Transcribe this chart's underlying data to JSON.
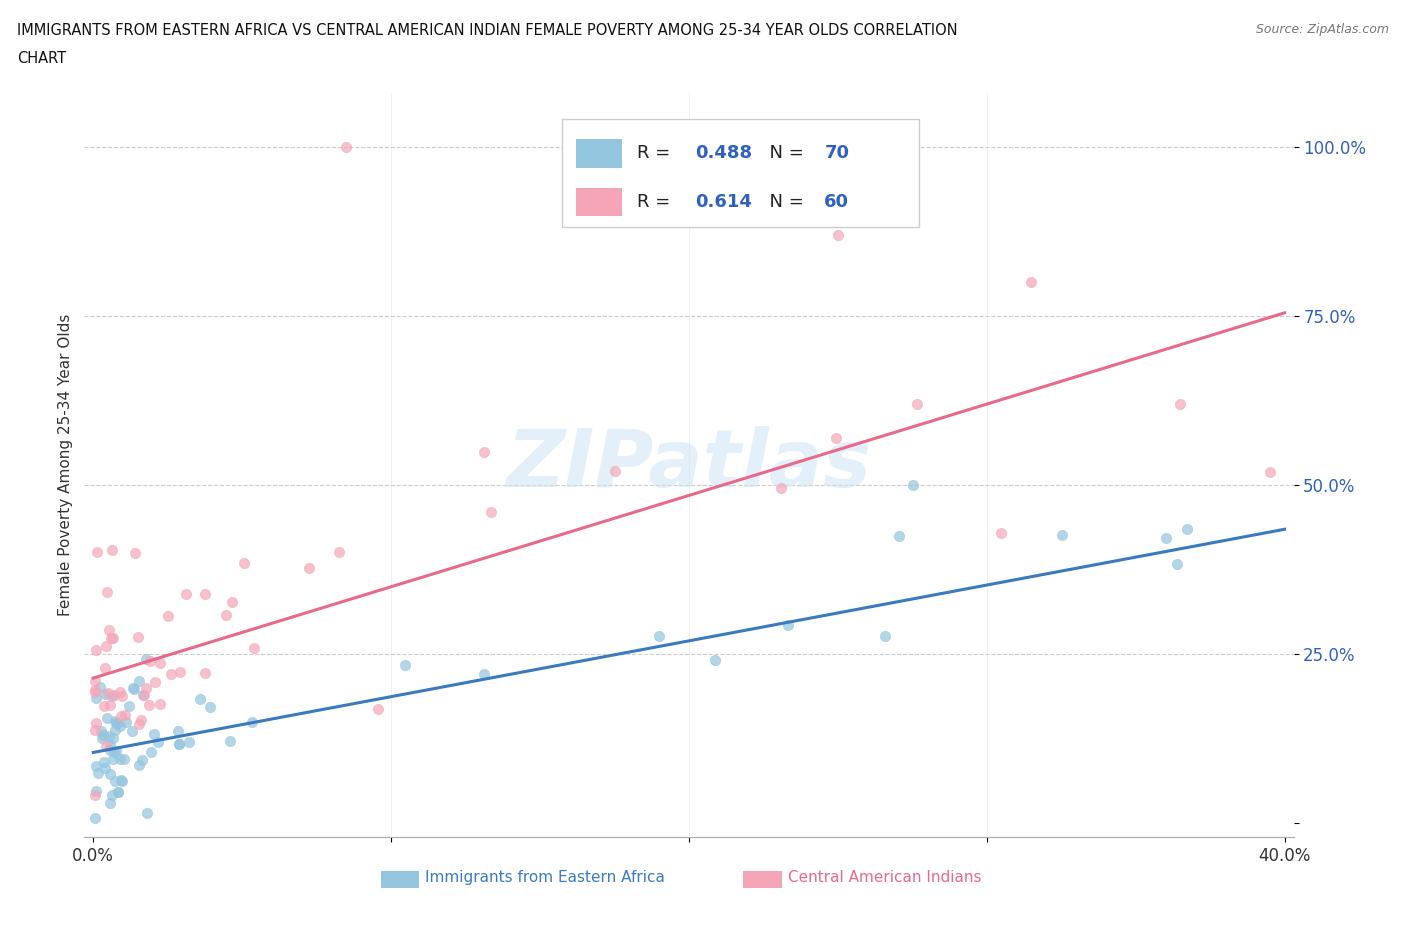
{
  "title_line1": "IMMIGRANTS FROM EASTERN AFRICA VS CENTRAL AMERICAN INDIAN FEMALE POVERTY AMONG 25-34 YEAR OLDS CORRELATION",
  "title_line2": "CHART",
  "source": "Source: ZipAtlas.com",
  "xlabel_blue": "Immigrants from Eastern Africa",
  "xlabel_pink": "Central American Indians",
  "ylabel": "Female Poverty Among 25-34 Year Olds",
  "xlim": [
    -0.003,
    0.403
  ],
  "ylim": [
    -0.02,
    1.08
  ],
  "ytick_vals": [
    0.0,
    0.25,
    0.5,
    0.75,
    1.0
  ],
  "ytick_labels": [
    "",
    "25.0%",
    "50.0%",
    "75.0%",
    "100.0%"
  ],
  "xtick_vals": [
    0.0,
    0.1,
    0.2,
    0.3,
    0.4
  ],
  "xtick_labels": [
    "0.0%",
    "",
    "",
    "",
    "40.0%"
  ],
  "blue_R": 0.488,
  "blue_N": 70,
  "pink_R": 0.614,
  "pink_N": 60,
  "blue_color": "#92c5de",
  "pink_color": "#f4a6b8",
  "blue_line_color": "#3a7bbf",
  "pink_line_color": "#e8698a",
  "legend_text_color": "#3060c0",
  "watermark": "ZIPatlas",
  "blue_line_x0": 0.0,
  "blue_line_y0": 0.105,
  "blue_line_x1": 0.4,
  "blue_line_y1": 0.435,
  "pink_line_x0": 0.0,
  "pink_line_y0": 0.215,
  "pink_line_x1": 0.4,
  "pink_line_y1": 0.755,
  "grid_color": "#cccccc",
  "bg_color": "#ffffff",
  "tick_label_color": "#3060c0"
}
